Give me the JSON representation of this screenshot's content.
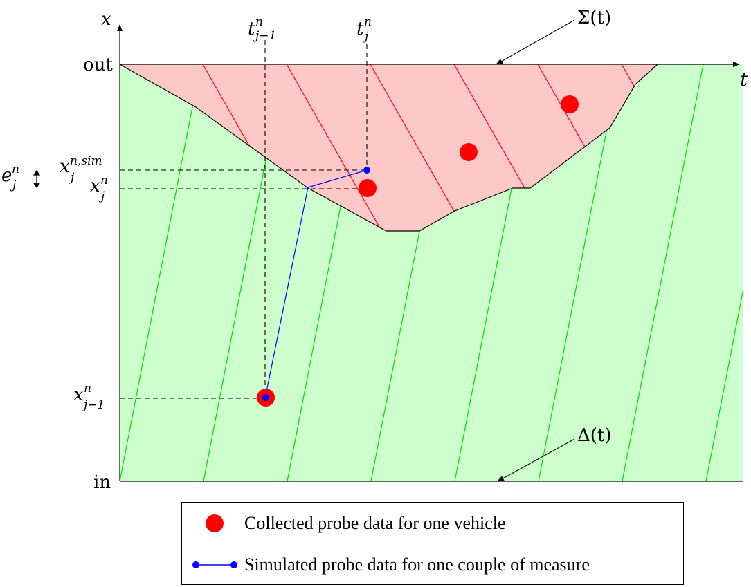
{
  "axes": {
    "x_axis_label": "x",
    "t_axis_label": "t",
    "out_label": "out",
    "in_label": "in"
  },
  "boundaries": {
    "upper": "Σ(t)",
    "lower": "Δ(t)"
  },
  "times": {
    "t_prev": {
      "base": "t",
      "sup": "n",
      "sub": "j−1"
    },
    "t_curr": {
      "base": "t",
      "sup": "n",
      "sub": "j"
    }
  },
  "positions": {
    "x_sim": {
      "base": "x",
      "sup": "n,sim",
      "sub": "j"
    },
    "x_meas": {
      "base": "x",
      "sup": "n",
      "sub": "j"
    },
    "x_prev": {
      "base": "x",
      "sup": "n",
      "sub": "j−1"
    },
    "error": {
      "base": "e",
      "sup": "n",
      "sub": "j"
    }
  },
  "legend": {
    "collected": "Collected probe data for one vehicle",
    "simulated": "Simulated probe data for one couple of measure"
  },
  "colors": {
    "congested_fill": "#ffc8c8",
    "free_fill": "#ccffcc",
    "congested_lines": "#ff0000",
    "free_lines": "#00dd00",
    "probe": "#ff0000",
    "simulated": "#0000ff"
  }
}
